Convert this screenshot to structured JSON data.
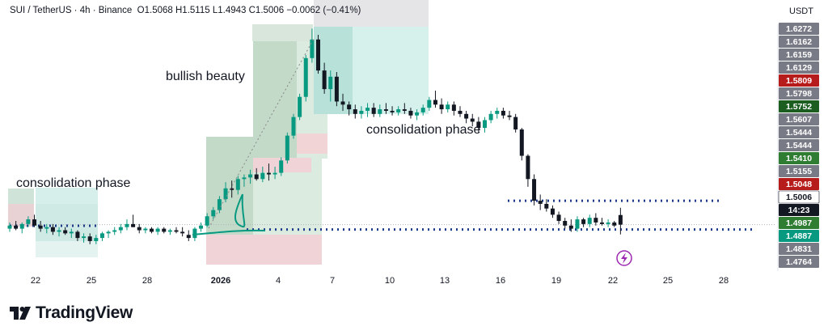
{
  "header": {
    "symbol": "SUI / TetherUS · 4h · Binance",
    "open": "O1.5068",
    "high": "H1.5115",
    "low": "L1.4943",
    "close": "C1.5006",
    "change": "−0.0062 (−0.41%)"
  },
  "annotations": {
    "consolidation_left": "consolidation phase",
    "bullish": "bullish beauty",
    "consolidation_right": "consolidation phase"
  },
  "brand": {
    "name": "TradingView"
  },
  "colors": {
    "up": "#089981",
    "down": "#131722",
    "level_dots": "#1e3a8a",
    "accent": "#9c27b0"
  },
  "icons": {
    "logo": "tradingview-logo-icon",
    "flash": "lightning-icon"
  },
  "chart_data": {
    "type": "candlestick",
    "quote_unit": "USDT",
    "x_ticks": [
      "22",
      "25",
      "28",
      "2026",
      "4",
      "7",
      "10",
      "13",
      "16",
      "19",
      "22",
      "25",
      "28"
    ],
    "y_axis_labels": [
      {
        "value": "1.6272",
        "bg": "#787b86",
        "fg": "#ffffff"
      },
      {
        "value": "1.6162",
        "bg": "#787b86",
        "fg": "#ffffff"
      },
      {
        "value": "1.6159",
        "bg": "#787b86",
        "fg": "#ffffff"
      },
      {
        "value": "1.6129",
        "bg": "#787b86",
        "fg": "#ffffff"
      },
      {
        "value": "1.5809",
        "bg": "#b71c1c",
        "fg": "#ffffff"
      },
      {
        "value": "1.5798",
        "bg": "#787b86",
        "fg": "#ffffff"
      },
      {
        "value": "1.5752",
        "bg": "#1b5e20",
        "fg": "#ffffff"
      },
      {
        "value": "1.5607",
        "bg": "#787b86",
        "fg": "#ffffff"
      },
      {
        "value": "1.5444",
        "bg": "#787b86",
        "fg": "#ffffff"
      },
      {
        "value": "1.5444",
        "bg": "#787b86",
        "fg": "#ffffff"
      },
      {
        "value": "1.5410",
        "bg": "#2e7d32",
        "fg": "#ffffff"
      },
      {
        "value": "1.5155",
        "bg": "#787b86",
        "fg": "#ffffff"
      },
      {
        "value": "1.5048",
        "bg": "#b71c1c",
        "fg": "#ffffff"
      },
      {
        "value": "1.5006",
        "bg": "#ffffff",
        "fg": "#131722"
      },
      {
        "value": "14:23",
        "bg": "#131722",
        "fg": "#ffffff"
      },
      {
        "value": "1.4987",
        "bg": "#2e7d32",
        "fg": "#ffffff"
      },
      {
        "value": "1.4887",
        "bg": "#089981",
        "fg": "#ffffff"
      },
      {
        "value": "1.4831",
        "bg": "#787b86",
        "fg": "#ffffff"
      },
      {
        "value": "1.4764",
        "bg": "#787b86",
        "fg": "#ffffff"
      }
    ],
    "last_price": 1.5006,
    "levels": [
      1.516,
      1.498
    ],
    "candles": [
      [
        1.498,
        1.502,
        1.496,
        1.5
      ],
      [
        1.5,
        1.503,
        1.497,
        1.498
      ],
      [
        1.498,
        1.502,
        1.495,
        1.501
      ],
      [
        1.501,
        1.506,
        1.499,
        1.504
      ],
      [
        1.504,
        1.507,
        1.499,
        1.5
      ],
      [
        1.5,
        1.503,
        1.496,
        1.498
      ],
      [
        1.498,
        1.501,
        1.495,
        1.499
      ],
      [
        1.499,
        1.501,
        1.494,
        1.496
      ],
      [
        1.496,
        1.499,
        1.493,
        1.497
      ],
      [
        1.497,
        1.499,
        1.494,
        1.495
      ],
      [
        1.495,
        1.498,
        1.492,
        1.496
      ],
      [
        1.496,
        1.497,
        1.49,
        1.492
      ],
      [
        1.492,
        1.495,
        1.489,
        1.493
      ],
      [
        1.493,
        1.495,
        1.488,
        1.49
      ],
      [
        1.49,
        1.494,
        1.488,
        1.492
      ],
      [
        1.492,
        1.496,
        1.49,
        1.495
      ],
      [
        1.495,
        1.497,
        1.492,
        1.496
      ],
      [
        1.496,
        1.499,
        1.494,
        1.497
      ],
      [
        1.497,
        1.501,
        1.495,
        1.499
      ],
      [
        1.499,
        1.504,
        1.497,
        1.501
      ],
      [
        1.501,
        1.507,
        1.499,
        1.499
      ],
      [
        1.499,
        1.501,
        1.495,
        1.497
      ],
      [
        1.497,
        1.499,
        1.495,
        1.498
      ],
      [
        1.498,
        1.499,
        1.495,
        1.496
      ],
      [
        1.496,
        1.499,
        1.494,
        1.498
      ],
      [
        1.498,
        1.499,
        1.495,
        1.496
      ],
      [
        1.496,
        1.498,
        1.494,
        1.497
      ],
      [
        1.497,
        1.499,
        1.495,
        1.496
      ],
      [
        1.496,
        1.499,
        1.493,
        1.495
      ],
      [
        1.494,
        1.497,
        1.49,
        1.492
      ],
      [
        1.492,
        1.499,
        1.49,
        1.498
      ],
      [
        1.498,
        1.502,
        1.496,
        1.5
      ],
      [
        1.5,
        1.508,
        1.499,
        1.506
      ],
      [
        1.506,
        1.512,
        1.504,
        1.51
      ],
      [
        1.51,
        1.519,
        1.508,
        1.517
      ],
      [
        1.517,
        1.528,
        1.515,
        1.524
      ],
      [
        1.524,
        1.529,
        1.518,
        1.523
      ],
      [
        1.523,
        1.532,
        1.52,
        1.53
      ],
      [
        1.53,
        1.533,
        1.525,
        1.531
      ],
      [
        1.531,
        1.536,
        1.527,
        1.533
      ],
      [
        1.533,
        1.537,
        1.529,
        1.53
      ],
      [
        1.53,
        1.538,
        1.528,
        1.534
      ],
      [
        1.534,
        1.54,
        1.529,
        1.533
      ],
      [
        1.533,
        1.538,
        1.53,
        1.534
      ],
      [
        1.534,
        1.544,
        1.532,
        1.542
      ],
      [
        1.542,
        1.56,
        1.54,
        1.558
      ],
      [
        1.558,
        1.572,
        1.556,
        1.57
      ],
      [
        1.57,
        1.585,
        1.568,
        1.583
      ],
      [
        1.583,
        1.61,
        1.58,
        1.608
      ],
      [
        1.608,
        1.627,
        1.605,
        1.62
      ],
      [
        1.62,
        1.623,
        1.598,
        1.6
      ],
      [
        1.6,
        1.605,
        1.585,
        1.588
      ],
      [
        1.588,
        1.6,
        1.58,
        1.596
      ],
      [
        1.596,
        1.599,
        1.577,
        1.58
      ],
      [
        1.58,
        1.585,
        1.574,
        1.578
      ],
      [
        1.578,
        1.58,
        1.571,
        1.575
      ],
      [
        1.575,
        1.578,
        1.569,
        1.572
      ],
      [
        1.572,
        1.577,
        1.569,
        1.574
      ],
      [
        1.574,
        1.579,
        1.57,
        1.576
      ],
      [
        1.576,
        1.579,
        1.57,
        1.572
      ],
      [
        1.572,
        1.578,
        1.57,
        1.575
      ],
      [
        1.575,
        1.579,
        1.572,
        1.574
      ],
      [
        1.574,
        1.577,
        1.571,
        1.573
      ],
      [
        1.573,
        1.577,
        1.571,
        1.575
      ],
      [
        1.575,
        1.579,
        1.572,
        1.574
      ],
      [
        1.574,
        1.576,
        1.569,
        1.571
      ],
      [
        1.571,
        1.575,
        1.568,
        1.573
      ],
      [
        1.573,
        1.578,
        1.571,
        1.576
      ],
      [
        1.576,
        1.583,
        1.574,
        1.581
      ],
      [
        1.581,
        1.587,
        1.576,
        1.578
      ],
      [
        1.578,
        1.582,
        1.572,
        1.575
      ],
      [
        1.575,
        1.58,
        1.573,
        1.578
      ],
      [
        1.578,
        1.58,
        1.571,
        1.574
      ],
      [
        1.574,
        1.577,
        1.57,
        1.572
      ],
      [
        1.572,
        1.574,
        1.566,
        1.569
      ],
      [
        1.569,
        1.572,
        1.564,
        1.567
      ],
      [
        1.567,
        1.57,
        1.56,
        1.563
      ],
      [
        1.563,
        1.57,
        1.56,
        1.568
      ],
      [
        1.568,
        1.574,
        1.566,
        1.572
      ],
      [
        1.572,
        1.576,
        1.569,
        1.574
      ],
      [
        1.574,
        1.576,
        1.569,
        1.571
      ],
      [
        1.571,
        1.574,
        1.568,
        1.57
      ],
      [
        1.57,
        1.572,
        1.56,
        1.562
      ],
      [
        1.562,
        1.563,
        1.542,
        1.545
      ],
      [
        1.545,
        1.546,
        1.525,
        1.53
      ],
      [
        1.53,
        1.533,
        1.513,
        1.516
      ],
      [
        1.516,
        1.52,
        1.51,
        1.514
      ],
      [
        1.514,
        1.517,
        1.509,
        1.511
      ],
      [
        1.511,
        1.513,
        1.505,
        1.507
      ],
      [
        1.507,
        1.509,
        1.501,
        1.503
      ],
      [
        1.503,
        1.505,
        1.498,
        1.5
      ],
      [
        1.5,
        1.504,
        1.496,
        1.498
      ],
      [
        1.498,
        1.506,
        1.496,
        1.504
      ],
      [
        1.504,
        1.505,
        1.499,
        1.501
      ],
      [
        1.501,
        1.507,
        1.499,
        1.505
      ],
      [
        1.505,
        1.508,
        1.5,
        1.502
      ],
      [
        1.502,
        1.505,
        1.5,
        1.501
      ],
      [
        1.501,
        1.504,
        1.499,
        1.502
      ],
      [
        1.502,
        1.503,
        1.499,
        1.5
      ],
      [
        1.5068,
        1.5115,
        1.4943,
        1.5006
      ]
    ]
  }
}
